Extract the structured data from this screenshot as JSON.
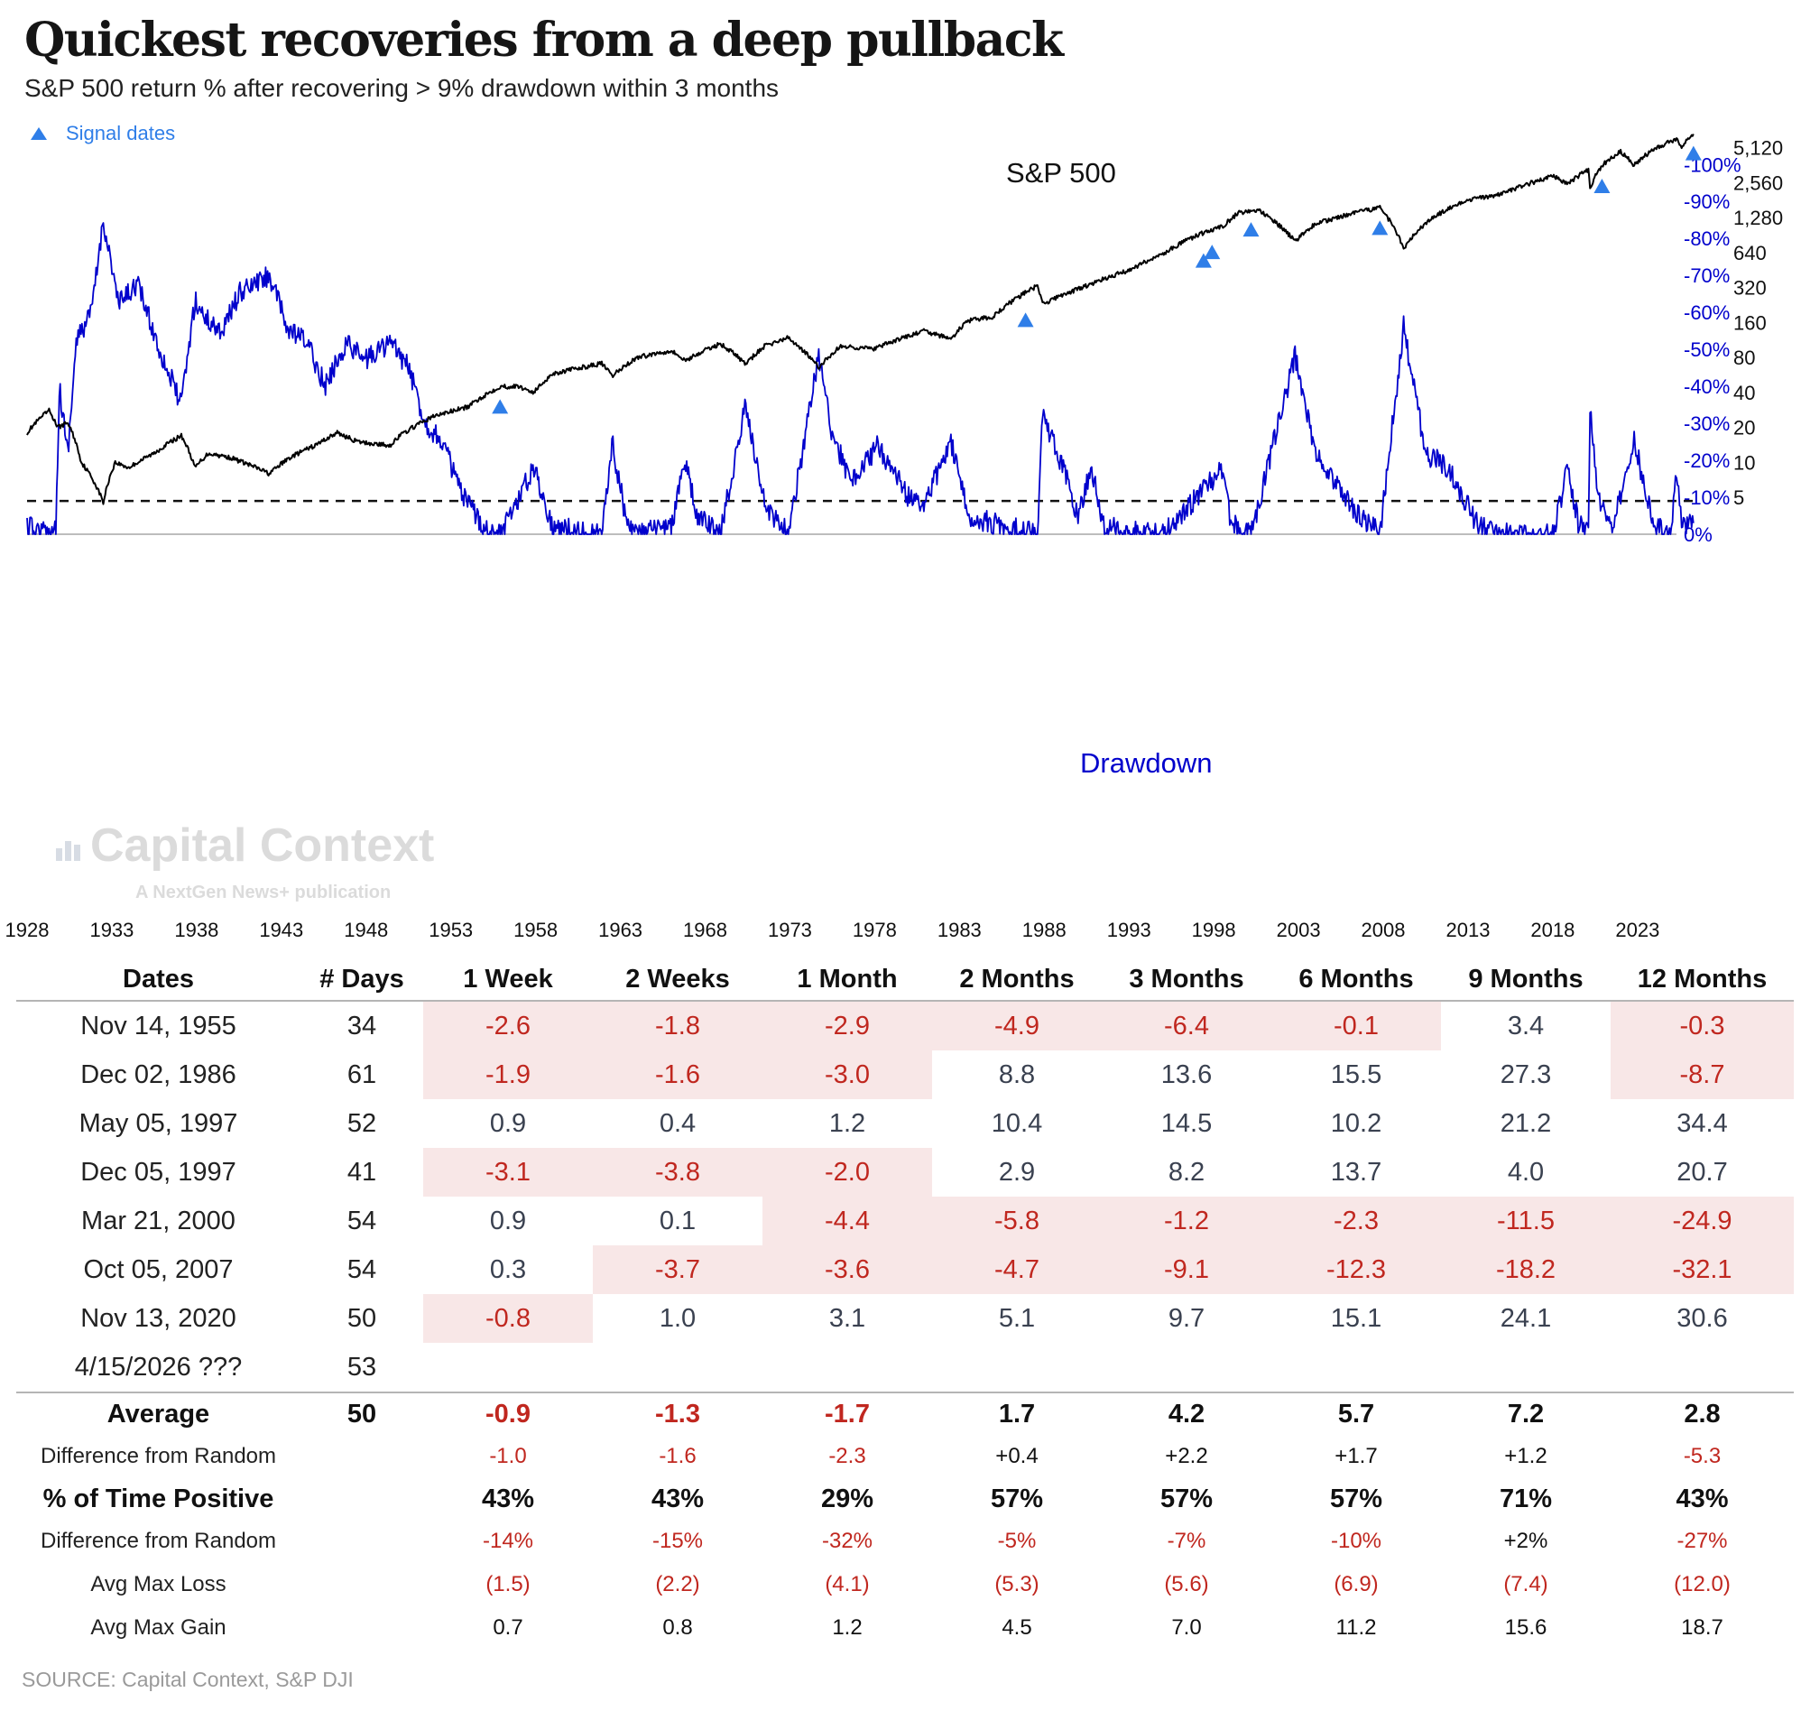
{
  "header": {
    "title": "Quickest recoveries from a deep pullback",
    "subtitle": "S&P 500 return % after recovering > 9% drawdown within 3 months"
  },
  "chart_data": [
    {
      "type": "line",
      "title": "S&P 500",
      "legend": "Signal dates",
      "scale": "log",
      "y_ticks": [
        "5,120",
        "2,560",
        "1,280",
        "640",
        "320",
        "160",
        "80",
        "40",
        "20",
        "10",
        "5"
      ],
      "y_tick_values": [
        5120,
        2560,
        1280,
        640,
        320,
        160,
        80,
        40,
        20,
        10,
        5
      ],
      "ylim": [
        4.2,
        7000
      ],
      "xlim": [
        1928,
        2027
      ],
      "x_ticks": [
        "1928",
        "1933",
        "1938",
        "1943",
        "1948",
        "1953",
        "1958",
        "1963",
        "1968",
        "1973",
        "1978",
        "1983",
        "1988",
        "1993",
        "1998",
        "2003",
        "2008",
        "2013",
        "2018",
        "2023"
      ],
      "x_tick_values": [
        1928,
        1933,
        1938,
        1943,
        1948,
        1953,
        1958,
        1963,
        1968,
        1973,
        1978,
        1983,
        1988,
        1993,
        1998,
        2003,
        2008,
        2013,
        2018,
        2023
      ],
      "series": [
        {
          "name": "S&P 500",
          "color": "#000000",
          "x": [
            1928,
            1929.3,
            1929.8,
            1930.4,
            1931.2,
            1932.5,
            1933.2,
            1934,
            1935.5,
            1937.1,
            1937.9,
            1938.7,
            1940,
            1942.3,
            1943.5,
            1945,
            1946.3,
            1947.5,
            1949.4,
            1950,
            1952,
            1954,
            1955.9,
            1957,
            1957.9,
            1959,
            1961.9,
            1962.5,
            1964,
            1966,
            1966.8,
            1968.9,
            1970.4,
            1971.5,
            1972.9,
            1974.7,
            1976,
            1978,
            1980.9,
            1982.5,
            1983.5,
            1985,
            1987.6,
            1987.9,
            1990.5,
            1993,
            1995,
            1997.4,
            1997.9,
            1998.6,
            1999.5,
            2000.6,
            2002.8,
            2004,
            2007.8,
            2009.2,
            2011,
            2013,
            2015,
            2018,
            2018.9,
            2020.1,
            2020.2,
            2020.9,
            2022,
            2022.8,
            2024,
            2025.3,
            2025.6,
            2026.3
          ],
          "values": [
            18,
            28,
            20,
            22,
            10,
            4.5,
            10,
            9,
            12,
            17,
            9,
            12,
            11,
            8,
            11,
            14,
            18,
            15,
            14,
            17,
            25,
            30,
            45,
            45,
            40,
            58,
            71,
            55,
            80,
            92,
            75,
            105,
            70,
            100,
            118,
            65,
            100,
            95,
            135,
            115,
            165,
            180,
            330,
            230,
            330,
            450,
            620,
            950,
            980,
            1100,
            1420,
            1480,
            800,
            1130,
            1560,
            700,
            1300,
            1800,
            2050,
            2900,
            2500,
            3300,
            2300,
            3600,
            4750,
            3600,
            5000,
            6100,
            5200,
            6700
          ]
        }
      ],
      "signals": [
        {
          "label": "Nov 14, 1955",
          "x": 1955.9,
          "value": 45
        },
        {
          "label": "Dec 02, 1986",
          "x": 1986.9,
          "value": 250
        },
        {
          "label": "May 05, 1997",
          "x": 1997.4,
          "value": 810
        },
        {
          "label": "Dec 05, 1997",
          "x": 1997.9,
          "value": 960
        },
        {
          "label": "Mar 21, 2000",
          "x": 2000.2,
          "value": 1500
        },
        {
          "label": "Oct 05, 2007",
          "x": 2007.8,
          "value": 1550
        },
        {
          "label": "Nov 13, 2020",
          "x": 2020.9,
          "value": 3550
        },
        {
          "label": "4/15/2026 ???",
          "x": 2026.3,
          "value": 6800
        }
      ],
      "colors": {
        "signal": "#2f7ee8"
      }
    },
    {
      "type": "area",
      "title": "Drawdown",
      "y_ticks": [
        "0%",
        "-10%",
        "-20%",
        "-30%",
        "-40%",
        "-50%",
        "-60%",
        "-70%",
        "-80%",
        "-90%",
        "-100%"
      ],
      "y_tick_values": [
        0,
        -10,
        -20,
        -30,
        -40,
        -50,
        -60,
        -70,
        -80,
        -90,
        -100
      ],
      "ylim": [
        -100,
        0
      ],
      "threshold": -9,
      "series": [
        {
          "name": "Drawdown",
          "color": "#0000cc",
          "x": [
            1928,
            1929.3,
            1929.7,
            1929.9,
            1930.4,
            1930.9,
            1931.8,
            1932.5,
            1933.4,
            1934.5,
            1935.8,
            1937.1,
            1937.9,
            1938.6,
            1939.5,
            1940.5,
            1942.3,
            1943.4,
            1944.5,
            1945.6,
            1946.4,
            1946.9,
            1947.9,
            1949.4,
            1950.5,
            1951.5,
            1952.5,
            1953.7,
            1954.5,
            1955,
            1955.6,
            1955.9,
            1957.9,
            1959,
            1961.9,
            1962.5,
            1963.3,
            1964,
            1966,
            1966.8,
            1967.5,
            1968.9,
            1970.4,
            1971.5,
            1972.9,
            1974.7,
            1975.5,
            1976.6,
            1978.2,
            1980,
            1980.9,
            1982.5,
            1983.5,
            1985,
            1987.6,
            1987.85,
            1988.8,
            1990,
            1990.8,
            1991.5,
            1995,
            1998.6,
            1999,
            2000.2,
            2002.8,
            2004,
            2006,
            2007.8,
            2009.2,
            2010.5,
            2011.8,
            2013.5,
            2015,
            2018,
            2018.9,
            2019.5,
            2020.1,
            2020.2,
            2020.7,
            2021.5,
            2022.8,
            2024,
            2025,
            2025.3,
            2025.6,
            2026.3
          ],
          "values": [
            -2,
            0,
            -2,
            -40,
            -22,
            -52,
            -60,
            -85,
            -62,
            -68,
            -50,
            -35,
            -63,
            -58,
            -55,
            -65,
            -70,
            -55,
            -52,
            -40,
            -48,
            -52,
            -47,
            -52,
            -45,
            -30,
            -25,
            -10,
            -5,
            -2,
            0,
            0,
            -18,
            -2,
            0,
            -25,
            -5,
            0,
            -2,
            -20,
            -5,
            0,
            -35,
            -8,
            0,
            -48,
            -27,
            -14,
            -24,
            -10,
            -8,
            -25,
            -5,
            -3,
            0,
            -32,
            -22,
            -5,
            -18,
            -2,
            0,
            -18,
            -3,
            0,
            -48,
            -22,
            -8,
            0,
            -56,
            -22,
            -18,
            -3,
            0,
            0,
            -18,
            -3,
            0,
            -33,
            -10,
            -1,
            -25,
            -2,
            0,
            -18,
            -3,
            -3
          ]
        }
      ]
    }
  ],
  "table": {
    "columns": [
      "Dates",
      "# Days",
      "1 Week",
      "2 Weeks",
      "1 Month",
      "2 Months",
      "3 Months",
      "6 Months",
      "9 Months",
      "12 Months"
    ],
    "rows": [
      {
        "date": "Nov 14, 1955",
        "days": "34",
        "values": [
          "-2.6",
          "-1.8",
          "-2.9",
          "-4.9",
          "-6.4",
          "-0.1",
          "3.4",
          "-0.3"
        ]
      },
      {
        "date": "Dec 02, 1986",
        "days": "61",
        "values": [
          "-1.9",
          "-1.6",
          "-3.0",
          "8.8",
          "13.6",
          "15.5",
          "27.3",
          "-8.7"
        ]
      },
      {
        "date": "May 05, 1997",
        "days": "52",
        "values": [
          "0.9",
          "0.4",
          "1.2",
          "10.4",
          "14.5",
          "10.2",
          "21.2",
          "34.4"
        ]
      },
      {
        "date": "Dec 05, 1997",
        "days": "41",
        "values": [
          "-3.1",
          "-3.8",
          "-2.0",
          "2.9",
          "8.2",
          "13.7",
          "4.0",
          "20.7"
        ]
      },
      {
        "date": "Mar 21, 2000",
        "days": "54",
        "values": [
          "0.9",
          "0.1",
          "-4.4",
          "-5.8",
          "-1.2",
          "-2.3",
          "-11.5",
          "-24.9"
        ]
      },
      {
        "date": "Oct 05, 2007",
        "days": "54",
        "values": [
          "0.3",
          "-3.7",
          "-3.6",
          "-4.7",
          "-9.1",
          "-12.3",
          "-18.2",
          "-32.1"
        ]
      },
      {
        "date": "Nov 13, 2020",
        "days": "50",
        "values": [
          "-0.8",
          "1.0",
          "3.1",
          "5.1",
          "9.7",
          "15.1",
          "24.1",
          "30.6"
        ]
      },
      {
        "date": "4/15/2026 ???",
        "days": "53",
        "values": [
          "",
          "",
          "",
          "",
          "",
          "",
          "",
          ""
        ]
      }
    ],
    "summary": {
      "average": {
        "label": "Average",
        "days": "50",
        "values": [
          "-0.9",
          "-1.3",
          "-1.7",
          "1.7",
          "4.2",
          "5.7",
          "7.2",
          "2.8"
        ]
      },
      "diff_avg": {
        "label": "Difference from Random",
        "values": [
          "-1.0",
          "-1.6",
          "-2.3",
          "+0.4",
          "+2.2",
          "+1.7",
          "+1.2",
          "-5.3"
        ]
      },
      "pct_positive": {
        "label": "% of Time Positive",
        "values": [
          "43%",
          "43%",
          "29%",
          "57%",
          "57%",
          "57%",
          "71%",
          "43%"
        ]
      },
      "diff_pct": {
        "label": "Difference from Random",
        "values": [
          "-14%",
          "-15%",
          "-32%",
          "-5%",
          "-7%",
          "-10%",
          "+2%",
          "-27%"
        ]
      },
      "max_loss": {
        "label": "Avg Max Loss",
        "values": [
          "(1.5)",
          "(2.2)",
          "(4.1)",
          "(5.3)",
          "(5.6)",
          "(6.9)",
          "(7.4)",
          "(12.0)"
        ]
      },
      "max_gain": {
        "label": "Avg Max Gain",
        "values": [
          "0.7",
          "0.8",
          "1.2",
          "4.5",
          "7.0",
          "11.2",
          "15.6",
          "18.7"
        ]
      }
    },
    "colors": {
      "neg_bg": "#f8e7e7",
      "neg_text": "#c0271f"
    }
  },
  "watermark": {
    "brand": "Capital Context",
    "tagline": "A NextGen News+ publication"
  },
  "footer": {
    "source": "SOURCE: Capital Context, S&P DJI"
  }
}
